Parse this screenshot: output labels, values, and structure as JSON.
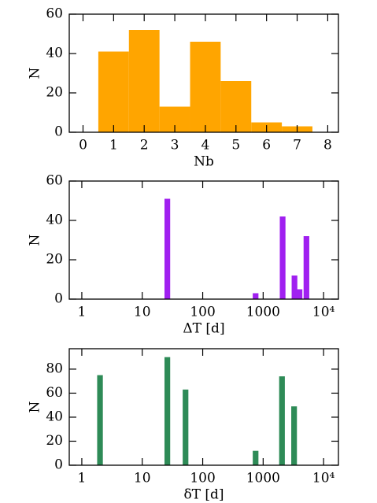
{
  "chart_data": [
    {
      "type": "histogram",
      "xlabel": "Nb",
      "ylabel": "N",
      "bins": [
        0.5,
        1.5,
        2.5,
        3.5,
        4.5,
        5.5,
        6.5,
        7.5
      ],
      "values": [
        41,
        52,
        13,
        46,
        26,
        5,
        3
      ],
      "color": "#ffa500",
      "xlim": [
        -0.45,
        8.35
      ],
      "xticks": [
        0,
        1,
        2,
        3,
        4,
        5,
        6,
        7,
        8
      ],
      "ylim": [
        0,
        60
      ],
      "yticks": [
        0,
        20,
        40,
        60
      ]
    },
    {
      "type": "bar",
      "xlabel": "ΔT [d]",
      "ylabel": "N",
      "xscale": "log",
      "x": [
        26,
        750,
        2100,
        3300,
        4000,
        5200
      ],
      "values": [
        51,
        3,
        42,
        12,
        5,
        32
      ],
      "color": "#a020f0",
      "xlim": [
        0.62,
        17600
      ],
      "xticks": [
        1,
        10,
        100,
        1000,
        {
          "value": 10000,
          "label": "10⁴"
        }
      ],
      "ylim": [
        0,
        60
      ],
      "yticks": [
        0,
        20,
        40,
        60
      ]
    },
    {
      "type": "bar",
      "xlabel": "δT [d]",
      "ylabel": "N",
      "xscale": "log",
      "x": [
        2,
        26,
        52,
        750,
        2050,
        3250
      ],
      "values": [
        75,
        90,
        63,
        12,
        74,
        49
      ],
      "color": "#2e8b57",
      "xlim": [
        0.62,
        17600
      ],
      "xticks": [
        1,
        10,
        100,
        1000,
        {
          "value": 10000,
          "label": "10⁴"
        }
      ],
      "ylim": [
        0,
        97
      ],
      "yticks": [
        0,
        20,
        40,
        60,
        80
      ]
    }
  ]
}
